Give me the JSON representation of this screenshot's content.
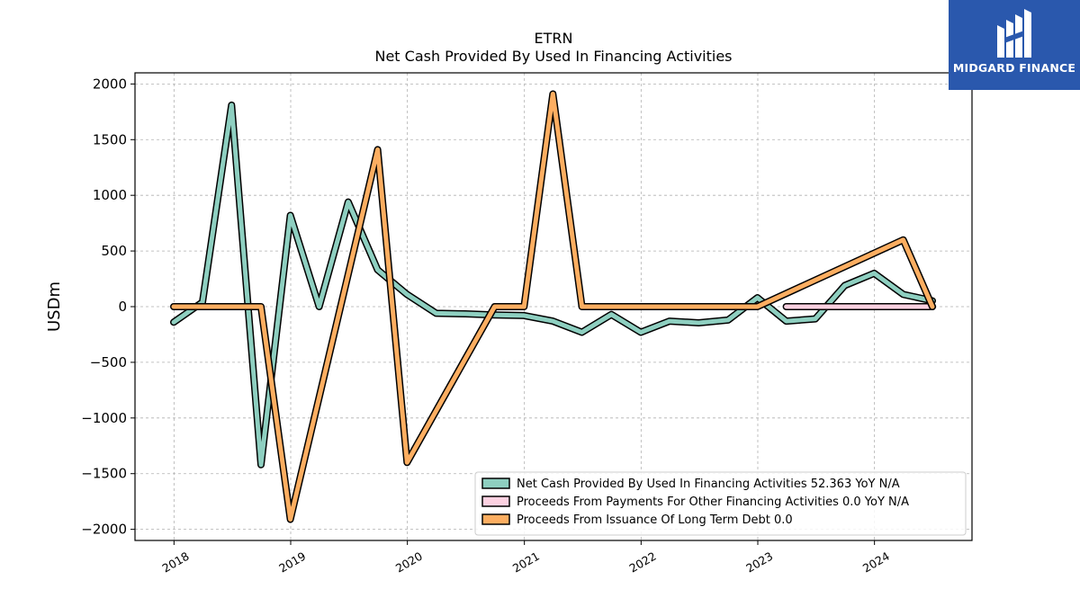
{
  "chart_data": {
    "type": "line",
    "title": "ETRN",
    "subtitle": "Net Cash Provided By Used In Financing Activities",
    "ylabel": "USDm",
    "xlabel": "",
    "xlim": [
      "2017-09-01",
      "2024-11-01"
    ],
    "ylim": [
      -2100,
      2100
    ],
    "x_ticks": [
      {
        "label": "2018",
        "date": "2018-01-01"
      },
      {
        "label": "2019",
        "date": "2019-01-01"
      },
      {
        "label": "2020",
        "date": "2020-01-01"
      },
      {
        "label": "2021",
        "date": "2021-01-01"
      },
      {
        "label": "2022",
        "date": "2022-01-01"
      },
      {
        "label": "2023",
        "date": "2023-01-01"
      },
      {
        "label": "2024",
        "date": "2024-01-01"
      }
    ],
    "y_ticks": [
      2000,
      1500,
      1000,
      500,
      0,
      -500,
      -1000,
      -1500,
      -2000
    ],
    "y_tick_labels": [
      "2000",
      "1500",
      "1000",
      "500",
      "0",
      "−500",
      "−1000",
      "−1500",
      "−2000"
    ],
    "grid": true,
    "legend_position": "bottom-right",
    "series": [
      {
        "name": "Net Cash Provided By Used In Financing Activities",
        "legend_label": "Net Cash Provided By Used In Financing Activities  52.363 YoY N/A",
        "color": "#8ecfc0",
        "points": [
          [
            "2017-12-31",
            -140
          ],
          [
            "2018-03-31",
            40
          ],
          [
            "2018-06-30",
            1810
          ],
          [
            "2018-09-30",
            -1420
          ],
          [
            "2018-12-31",
            820
          ],
          [
            "2019-03-31",
            0
          ],
          [
            "2019-06-30",
            940
          ],
          [
            "2019-09-30",
            330
          ],
          [
            "2019-12-31",
            110
          ],
          [
            "2020-03-31",
            -60
          ],
          [
            "2020-06-30",
            -65
          ],
          [
            "2020-09-30",
            -75
          ],
          [
            "2020-12-31",
            -80
          ],
          [
            "2021-03-31",
            -130
          ],
          [
            "2021-06-30",
            -230
          ],
          [
            "2021-09-30",
            -70
          ],
          [
            "2021-12-31",
            -230
          ],
          [
            "2022-03-31",
            -130
          ],
          [
            "2022-06-30",
            -145
          ],
          [
            "2022-09-30",
            -120
          ],
          [
            "2022-12-31",
            80
          ],
          [
            "2023-03-31",
            -130
          ],
          [
            "2023-06-30",
            -110
          ],
          [
            "2023-09-30",
            190
          ],
          [
            "2023-12-31",
            300
          ],
          [
            "2024-03-31",
            110
          ],
          [
            "2024-06-30",
            52.363
          ]
        ]
      },
      {
        "name": "Proceeds From Payments For Other Financing Activities",
        "legend_label": "Proceeds From Payments For Other Financing Activities  0.0 YoY N/A",
        "color": "#fdd1e1",
        "points": [
          [
            "2023-03-31",
            0
          ],
          [
            "2023-06-30",
            0
          ],
          [
            "2023-09-30",
            0
          ],
          [
            "2023-12-31",
            0
          ],
          [
            "2024-03-31",
            0
          ],
          [
            "2024-06-30",
            0
          ]
        ]
      },
      {
        "name": "Proceeds From Issuance Of Long Term Debt",
        "legend_label": "Proceeds From Issuance Of Long Term Debt  0.0",
        "color": "#fdae61",
        "points": [
          [
            "2017-12-31",
            0
          ],
          [
            "2018-03-31",
            0
          ],
          [
            "2018-06-30",
            0
          ],
          [
            "2018-09-30",
            0
          ],
          [
            "2018-12-31",
            -1910
          ],
          [
            "2019-09-30",
            1410
          ],
          [
            "2019-12-31",
            -1400
          ],
          [
            "2020-09-30",
            0
          ],
          [
            "2020-12-31",
            0
          ],
          [
            "2021-03-31",
            1910
          ],
          [
            "2021-06-30",
            0
          ],
          [
            "2021-09-30",
            0
          ],
          [
            "2021-12-31",
            0
          ],
          [
            "2022-03-31",
            0
          ],
          [
            "2022-06-30",
            0
          ],
          [
            "2022-09-30",
            0
          ],
          [
            "2022-12-31",
            0
          ],
          [
            "2024-03-31",
            600
          ],
          [
            "2024-06-30",
            0
          ]
        ]
      }
    ]
  },
  "logo": {
    "text": "MIDGARD FINANCE",
    "background": "#2a58ad"
  }
}
